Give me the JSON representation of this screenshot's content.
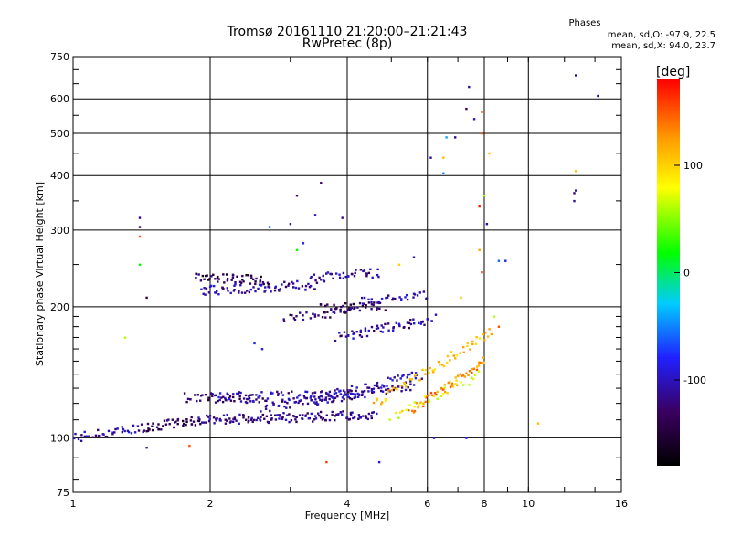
{
  "chart_data": {
    "type": "scatter",
    "title": "Tromsø 20161110 21:20:00–21:21:43",
    "subtitle": "RwPretec (8p)",
    "xlabel": "Frequency [MHz]",
    "ylabel": "Stationary phase Virtual Height [km]",
    "x_scale": "log",
    "y_scale": "log",
    "xlim": [
      1,
      16
    ],
    "ylim": [
      75,
      750
    ],
    "x_ticks": [
      1,
      2,
      4,
      6,
      8,
      10,
      16
    ],
    "x_tick_labels": [
      "1",
      "2",
      "4",
      "6",
      "8",
      "10",
      "16"
    ],
    "y_ticks": [
      75,
      100,
      200,
      300,
      400,
      500,
      600,
      750
    ],
    "y_tick_labels": [
      "75",
      "100",
      "200",
      "300",
      "400",
      "500",
      "600",
      "750"
    ],
    "grid": true,
    "colorbar": {
      "label": "[deg]",
      "ticks": [
        100,
        0,
        -100
      ],
      "range": [
        -180,
        180
      ],
      "colormap": [
        "#000000",
        "#3a0060",
        "#2020ff",
        "#00ccff",
        "#00ff00",
        "#ffff00",
        "#ff9900",
        "#ff0000"
      ]
    },
    "info": {
      "heading": "Phases",
      "o_line": "mean, sd,O: -97.9, 22.5",
      "x_line": "mean, sd,X: 94.0, 23.7"
    },
    "traces": [
      {
        "from_x": 1.0,
        "to_x": 1.45,
        "from_y": 100,
        "to_y": 106,
        "phase": -110,
        "n": 40
      },
      {
        "from_x": 1.45,
        "to_x": 1.9,
        "from_y": 106,
        "to_y": 110,
        "phase": -135,
        "n": 40
      },
      {
        "from_x": 1.9,
        "to_x": 4.6,
        "from_y": 110,
        "to_y": 113,
        "phase": -115,
        "n": 140
      },
      {
        "from_x": 1.75,
        "to_x": 2.6,
        "from_y": 124,
        "to_y": 123,
        "phase": -130,
        "n": 40
      },
      {
        "from_x": 2.0,
        "to_x": 4.3,
        "from_y": 124,
        "to_y": 126,
        "phase": -105,
        "n": 80
      },
      {
        "from_x": 2.6,
        "to_x": 5.6,
        "from_y": 117,
        "to_y": 132,
        "phase": -112,
        "n": 80
      },
      {
        "from_x": 3.3,
        "to_x": 5.8,
        "from_y": 122,
        "to_y": 140,
        "phase": -100,
        "n": 60
      },
      {
        "from_x": 1.85,
        "to_x": 2.7,
        "from_y": 235,
        "to_y": 230,
        "phase": -140,
        "n": 50
      },
      {
        "from_x": 1.9,
        "to_x": 3.4,
        "from_y": 218,
        "to_y": 225,
        "phase": -110,
        "n": 70
      },
      {
        "from_x": 3.3,
        "to_x": 4.7,
        "from_y": 232,
        "to_y": 240,
        "phase": -110,
        "n": 40
      },
      {
        "from_x": 3.5,
        "to_x": 4.8,
        "from_y": 198,
        "to_y": 200,
        "phase": -135,
        "n": 40
      },
      {
        "from_x": 2.9,
        "to_x": 4.1,
        "from_y": 188,
        "to_y": 196,
        "phase": -125,
        "n": 30
      },
      {
        "from_x": 4.3,
        "to_x": 6.0,
        "from_y": 205,
        "to_y": 212,
        "phase": -100,
        "n": 30
      },
      {
        "from_x": 3.8,
        "to_x": 6.2,
        "from_y": 170,
        "to_y": 188,
        "phase": -110,
        "n": 60
      },
      {
        "from_x": 4.6,
        "to_x": 8.3,
        "from_y": 120,
        "to_y": 175,
        "phase": 110,
        "n": 60
      },
      {
        "from_x": 5.5,
        "to_x": 8.0,
        "from_y": 115,
        "to_y": 150,
        "phase": 130,
        "n": 50
      },
      {
        "from_x": 5.0,
        "to_x": 7.8,
        "from_y": 112,
        "to_y": 140,
        "phase": 80,
        "n": 30
      }
    ],
    "points": [
      {
        "x": 1.4,
        "y": 320,
        "phase": -120
      },
      {
        "x": 1.4,
        "y": 305,
        "phase": -130
      },
      {
        "x": 1.4,
        "y": 290,
        "phase": 150
      },
      {
        "x": 1.4,
        "y": 250,
        "phase": 20
      },
      {
        "x": 1.45,
        "y": 210,
        "phase": -140
      },
      {
        "x": 1.3,
        "y": 170,
        "phase": 60
      },
      {
        "x": 1.45,
        "y": 95,
        "phase": -100
      },
      {
        "x": 1.8,
        "y": 96,
        "phase": 150
      },
      {
        "x": 2.5,
        "y": 165,
        "phase": -80
      },
      {
        "x": 2.6,
        "y": 160,
        "phase": -90
      },
      {
        "x": 2.7,
        "y": 305,
        "phase": -60
      },
      {
        "x": 3.1,
        "y": 360,
        "phase": -130
      },
      {
        "x": 3.5,
        "y": 385,
        "phase": -130
      },
      {
        "x": 3.4,
        "y": 325,
        "phase": -100
      },
      {
        "x": 3.9,
        "y": 320,
        "phase": -120
      },
      {
        "x": 3.0,
        "y": 310,
        "phase": -100
      },
      {
        "x": 3.2,
        "y": 280,
        "phase": -80
      },
      {
        "x": 3.1,
        "y": 270,
        "phase": 20
      },
      {
        "x": 3.6,
        "y": 88,
        "phase": 160
      },
      {
        "x": 4.7,
        "y": 88,
        "phase": -90
      },
      {
        "x": 5.2,
        "y": 250,
        "phase": 100
      },
      {
        "x": 5.6,
        "y": 260,
        "phase": -100
      },
      {
        "x": 6.1,
        "y": 440,
        "phase": -110
      },
      {
        "x": 6.5,
        "y": 440,
        "phase": 110
      },
      {
        "x": 6.6,
        "y": 490,
        "phase": -40
      },
      {
        "x": 6.5,
        "y": 405,
        "phase": -50
      },
      {
        "x": 6.9,
        "y": 490,
        "phase": -120
      },
      {
        "x": 7.3,
        "y": 570,
        "phase": -130
      },
      {
        "x": 7.4,
        "y": 640,
        "phase": -110
      },
      {
        "x": 7.6,
        "y": 540,
        "phase": -100
      },
      {
        "x": 7.9,
        "y": 560,
        "phase": 150
      },
      {
        "x": 7.9,
        "y": 500,
        "phase": 150
      },
      {
        "x": 7.8,
        "y": 340,
        "phase": 170
      },
      {
        "x": 8.0,
        "y": 360,
        "phase": 60
      },
      {
        "x": 8.1,
        "y": 310,
        "phase": -110
      },
      {
        "x": 8.2,
        "y": 450,
        "phase": 110
      },
      {
        "x": 8.6,
        "y": 255,
        "phase": -60
      },
      {
        "x": 8.9,
        "y": 255,
        "phase": -90
      },
      {
        "x": 7.8,
        "y": 270,
        "phase": 120
      },
      {
        "x": 7.9,
        "y": 240,
        "phase": 160
      },
      {
        "x": 7.1,
        "y": 210,
        "phase": 110
      },
      {
        "x": 8.4,
        "y": 190,
        "phase": 60
      },
      {
        "x": 8.6,
        "y": 180,
        "phase": 150
      },
      {
        "x": 7.3,
        "y": 100,
        "phase": -80
      },
      {
        "x": 6.2,
        "y": 100,
        "phase": -90
      },
      {
        "x": 10.5,
        "y": 108,
        "phase": 110
      },
      {
        "x": 12.7,
        "y": 680,
        "phase": -110
      },
      {
        "x": 12.7,
        "y": 410,
        "phase": 110
      },
      {
        "x": 12.6,
        "y": 365,
        "phase": -120
      },
      {
        "x": 12.6,
        "y": 350,
        "phase": -110
      },
      {
        "x": 12.7,
        "y": 370,
        "phase": -100
      },
      {
        "x": 14.2,
        "y": 610,
        "phase": -110
      }
    ]
  }
}
